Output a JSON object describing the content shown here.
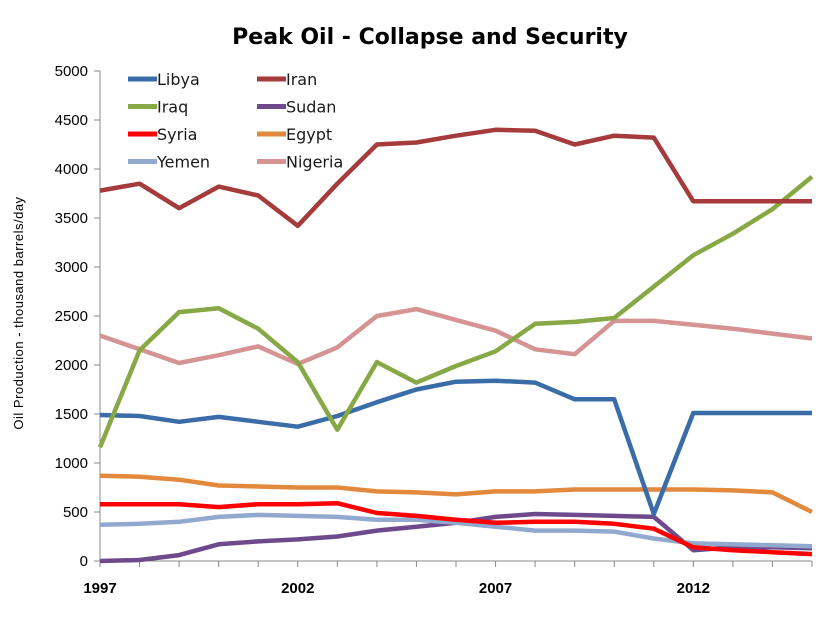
{
  "chart_data": {
    "type": "line",
    "title": "Peak Oil -  Collapse and Security",
    "ylabel": "Oil Production  - thousand  barrels/day",
    "xlabel": "",
    "xlim": [
      1997,
      2015
    ],
    "ylim": [
      0,
      5000
    ],
    "x_ticks": [
      1997,
      2002,
      2007,
      2012
    ],
    "y_ticks": [
      0,
      500,
      1000,
      1500,
      2000,
      2500,
      3000,
      3500,
      4000,
      4500,
      5000
    ],
    "grid": false,
    "legend_position": "top-left",
    "x": [
      1997,
      1998,
      1999,
      2000,
      2001,
      2002,
      2003,
      2004,
      2005,
      2006,
      2007,
      2008,
      2009,
      2010,
      2011,
      2012,
      2013,
      2014,
      2015
    ],
    "series": [
      {
        "name": "Libya",
        "color": "#3A6CA8",
        "values": [
          1490,
          1480,
          1420,
          1470,
          1420,
          1370,
          1480,
          1620,
          1750,
          1830,
          1840,
          1820,
          1650,
          1650,
          480,
          1510,
          1510,
          1510,
          1510
        ]
      },
      {
        "name": "Iran",
        "color": "#A53B3A",
        "values": [
          3780,
          3850,
          3600,
          3820,
          3730,
          3420,
          3850,
          4250,
          4270,
          4340,
          4400,
          4390,
          4250,
          4340,
          4320,
          3670,
          3670,
          3670,
          3670
        ]
      },
      {
        "name": "Iraq",
        "color": "#86A845",
        "values": [
          1160,
          2150,
          2540,
          2580,
          2370,
          2030,
          1340,
          2030,
          1820,
          1990,
          2140,
          2420,
          2440,
          2480,
          2800,
          3120,
          3340,
          3590,
          3920
        ]
      },
      {
        "name": "Sudan",
        "color": "#6E4A8C",
        "values": [
          0,
          10,
          60,
          170,
          200,
          220,
          250,
          310,
          350,
          390,
          450,
          480,
          470,
          460,
          450,
          110,
          140,
          140,
          130
        ]
      },
      {
        "name": "Syria",
        "color": "#FF0000",
        "values": [
          580,
          580,
          580,
          550,
          580,
          580,
          590,
          490,
          460,
          420,
          390,
          400,
          400,
          380,
          330,
          140,
          110,
          90,
          70
        ]
      },
      {
        "name": "Egypt",
        "color": "#E3893D",
        "values": [
          870,
          860,
          830,
          770,
          760,
          750,
          750,
          710,
          700,
          680,
          710,
          710,
          730,
          730,
          730,
          730,
          720,
          700,
          500
        ]
      },
      {
        "name": "Yemen",
        "color": "#92A9CF",
        "values": [
          370,
          380,
          400,
          450,
          470,
          460,
          450,
          420,
          420,
          390,
          350,
          310,
          310,
          300,
          230,
          180,
          170,
          160,
          150
        ]
      },
      {
        "name": "Nigeria",
        "color": "#D59493",
        "values": [
          2300,
          2160,
          2020,
          2100,
          2190,
          2010,
          2180,
          2500,
          2570,
          2460,
          2350,
          2160,
          2110,
          2450,
          2450,
          2410,
          2370,
          2320,
          2270
        ]
      }
    ]
  }
}
